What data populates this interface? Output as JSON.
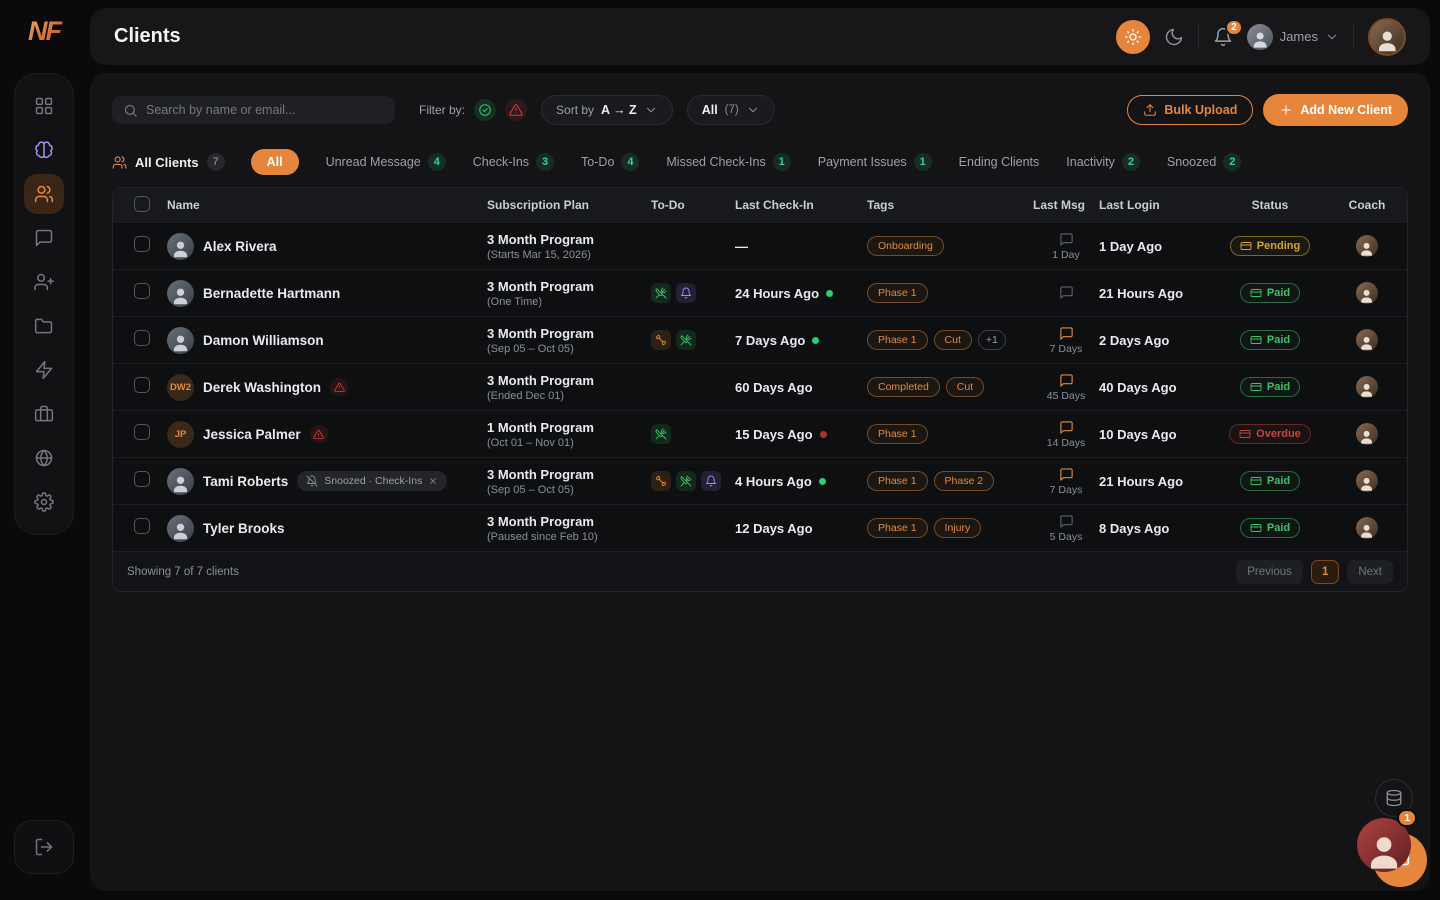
{
  "header": {
    "title": "Clients",
    "notifications_count": "2",
    "user_name": "James"
  },
  "sidebar": {
    "logo": "NF",
    "items": [
      {
        "name": "dashboard",
        "icon": "grid-icon"
      },
      {
        "name": "ai",
        "icon": "brain-icon",
        "accent": "purple"
      },
      {
        "name": "clients",
        "icon": "users-icon",
        "active": true
      },
      {
        "name": "messages",
        "icon": "chat-icon"
      },
      {
        "name": "add-client",
        "icon": "user-plus-icon"
      },
      {
        "name": "files",
        "icon": "folder-icon"
      },
      {
        "name": "automations",
        "icon": "zap-icon"
      },
      {
        "name": "business",
        "icon": "briefcase-icon"
      },
      {
        "name": "website",
        "icon": "globe-icon"
      },
      {
        "name": "settings",
        "icon": "gear-icon"
      }
    ]
  },
  "toolbar": {
    "search_placeholder": "Search by name or email...",
    "filter_by_label": "Filter by:",
    "sort_by_label": "Sort by",
    "sort_value": "A → Z",
    "scope_value": "All",
    "scope_count": "(7)",
    "bulk_upload_label": "Bulk Upload",
    "add_new_client_label": "Add New Client"
  },
  "clients_tab_group": {
    "label": "All Clients",
    "count": "7"
  },
  "tabs": [
    {
      "label": "All",
      "active": true
    },
    {
      "label": "Unread Message",
      "badge": "4"
    },
    {
      "label": "Check-Ins",
      "badge": "3"
    },
    {
      "label": "To-Do",
      "badge": "4"
    },
    {
      "label": "Missed Check-Ins",
      "badge": "1"
    },
    {
      "label": "Payment Issues",
      "badge": "1"
    },
    {
      "label": "Ending Clients",
      "badge": null
    },
    {
      "label": "Inactivity",
      "badge": "2"
    },
    {
      "label": "Snoozed",
      "badge": "2"
    }
  ],
  "table": {
    "headers": [
      "Name",
      "Subscription Plan",
      "To-Do",
      "Last Check-In",
      "Tags",
      "Last Msg",
      "Last Login",
      "Status",
      "Coach"
    ],
    "rows": [
      {
        "name": "Alex Rivera",
        "avatar": "photo",
        "plan": "3 Month Program",
        "plan_detail": "(Starts Mar 15, 2026)",
        "todo": [],
        "last_checkin": "—",
        "checkin_dot": null,
        "tags": [
          "Onboarding"
        ],
        "tags_more": null,
        "msg_days": "1 Day",
        "msg_active": false,
        "last_login": "1 Day Ago",
        "status": "Pending"
      },
      {
        "name": "Bernadette Hartmann",
        "avatar": "photo",
        "plan": "3 Month Program",
        "plan_detail": "(One Time)",
        "todo": [
          "meal",
          "reminder"
        ],
        "last_checkin": "24 Hours Ago",
        "checkin_dot": "green",
        "tags": [
          "Phase 1"
        ],
        "tags_more": null,
        "msg_days": "",
        "msg_active": false,
        "last_login": "21 Hours Ago",
        "status": "Paid"
      },
      {
        "name": "Damon Williamson",
        "avatar": "photo",
        "plan": "3 Month Program",
        "plan_detail": "(Sep 05 – Oct 05)",
        "todo": [
          "workout",
          "meal"
        ],
        "last_checkin": "7 Days Ago",
        "checkin_dot": "green",
        "tags": [
          "Phase 1",
          "Cut"
        ],
        "tags_more": "+1",
        "msg_days": "7 Days",
        "msg_active": true,
        "last_login": "2 Days Ago",
        "status": "Paid"
      },
      {
        "name": "Derek Washington",
        "avatar": "initials",
        "initials": "DW2",
        "warning": true,
        "plan": "3 Month Program",
        "plan_detail": "(Ended Dec 01)",
        "todo": [],
        "last_checkin": "60 Days Ago",
        "checkin_dot": null,
        "tags": [
          "Completed",
          "Cut"
        ],
        "tags_more": null,
        "msg_days": "45 Days",
        "msg_active": true,
        "last_login": "40 Days Ago",
        "status": "Paid"
      },
      {
        "name": "Jessica Palmer",
        "avatar": "initials",
        "initials": "JP",
        "warning": true,
        "plan": "1 Month Program",
        "plan_detail": "(Oct 01 – Nov 01)",
        "todo": [
          "meal"
        ],
        "last_checkin": "15 Days Ago",
        "checkin_dot": "red",
        "tags": [
          "Phase 1"
        ],
        "tags_more": null,
        "msg_days": "14 Days",
        "msg_active": true,
        "last_login": "10 Days Ago",
        "status": "Overdue"
      },
      {
        "name": "Tami Roberts",
        "avatar": "photo",
        "snooze_chip": "Snoozed · Check-Ins",
        "plan": "3 Month Program",
        "plan_detail": "(Sep 05 – Oct 05)",
        "todo": [
          "workout",
          "meal",
          "reminder"
        ],
        "last_checkin": "4 Hours Ago",
        "checkin_dot": "green",
        "tags": [
          "Phase 1",
          "Phase 2"
        ],
        "tags_more": null,
        "msg_days": "7 Days",
        "msg_active": true,
        "last_login": "21 Hours Ago",
        "status": "Paid"
      },
      {
        "name": "Tyler Brooks",
        "avatar": "photo",
        "plan": "3 Month Program",
        "plan_detail": "(Paused since Feb 10)",
        "todo": [],
        "last_checkin": "12 Days Ago",
        "checkin_dot": null,
        "tags": [
          "Phase 1",
          "Injury"
        ],
        "tags_more": null,
        "msg_days": "5 Days",
        "msg_active": false,
        "last_login": "8 Days Ago",
        "status": "Paid"
      }
    ]
  },
  "pagination": {
    "summary": "Showing 7 of 7 clients",
    "previous_label": "Previous",
    "page": "1",
    "next_label": "Next"
  },
  "chat_widget": {
    "unread_count": "1"
  },
  "colors": {
    "accent": "#e5863c",
    "success": "#3fc06a",
    "warning": "#d4a72c",
    "danger": "#c0473e",
    "purple": "#a78bfa"
  }
}
